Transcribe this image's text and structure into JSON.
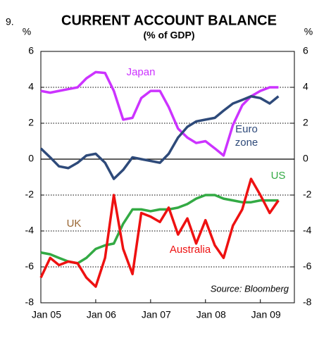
{
  "chart_data": {
    "type": "line",
    "figure_number": "9.",
    "title": "CURRENT ACCOUNT BALANCE",
    "subtitle": "(% of GDP)",
    "y_unit": "%",
    "y2_unit": "%",
    "source": "Source: Bloomberg",
    "x": [
      2005,
      2005.17,
      2005.33,
      2005.5,
      2005.67,
      2005.83,
      2006,
      2006.17,
      2006.33,
      2006.5,
      2006.67,
      2006.83,
      2007,
      2007.17,
      2007.33,
      2007.5,
      2007.67,
      2007.83,
      2008,
      2008.17,
      2008.33,
      2008.5,
      2008.67,
      2008.83,
      2009,
      2009.17,
      2009.33
    ],
    "xlim": [
      2005,
      2009.62
    ],
    "xticks": [
      {
        "value": 2005,
        "label": "Jan 05"
      },
      {
        "value": 2006,
        "label": "Jan 06"
      },
      {
        "value": 2007,
        "label": "Jan 07"
      },
      {
        "value": 2008,
        "label": "Jan 08"
      },
      {
        "value": 2009,
        "label": "Jan 09"
      }
    ],
    "ylim": [
      -8,
      6
    ],
    "yticks": [
      -8,
      -6,
      -4,
      -2,
      0,
      2,
      4,
      6
    ],
    "y2lim": [
      -8,
      6
    ],
    "y2ticks": [
      -8,
      -6,
      -4,
      -2,
      0,
      2,
      4,
      6
    ],
    "grid": true,
    "series": [
      {
        "name": "Japan",
        "color": "#cc33ff",
        "values": [
          3.8,
          3.7,
          3.8,
          3.9,
          4.0,
          4.5,
          4.85,
          4.8,
          3.8,
          2.2,
          2.3,
          3.4,
          3.8,
          3.8,
          2.9,
          1.7,
          1.2,
          0.9,
          1.0,
          0.6,
          0.2,
          1.9,
          3.0,
          3.5,
          3.8,
          4.0,
          4.0
        ]
      },
      {
        "name": "Euro zone",
        "color": "#2e4a7a",
        "values": [
          0.6,
          0.1,
          -0.4,
          -0.5,
          -0.2,
          0.2,
          0.3,
          -0.2,
          -1.1,
          -0.6,
          0.1,
          0.0,
          -0.1,
          -0.2,
          0.3,
          1.2,
          1.8,
          2.1,
          2.2,
          2.3,
          2.7,
          3.1,
          3.3,
          3.5,
          3.4,
          3.1,
          3.5
        ]
      },
      {
        "name": "US",
        "color": "#33aa44",
        "values": [
          -5.2,
          -5.3,
          -5.5,
          -5.7,
          -5.8,
          -5.5,
          -5.0,
          -4.8,
          -4.7,
          -3.6,
          -2.8,
          -2.8,
          -2.9,
          -2.8,
          -2.8,
          -2.7,
          -2.5,
          -2.2,
          -2.0,
          -2.0,
          -2.2,
          -2.3,
          -2.4,
          -2.4,
          -2.3,
          -2.3,
          -2.3
        ]
      },
      {
        "name": "Australia",
        "color": "#ee1111",
        "values": [
          -6.6,
          -5.5,
          -5.9,
          -5.7,
          -5.8,
          -6.6,
          -7.1,
          -5.5,
          -2.0,
          -5.0,
          -6.4,
          -3.0,
          -3.2,
          -3.5,
          -2.7,
          -4.2,
          -3.3,
          -4.7,
          -3.4,
          -4.8,
          -5.5,
          -3.7,
          -2.8,
          -1.1,
          -2.0,
          -3.0,
          -2.3
        ]
      }
    ],
    "annotations": [
      {
        "text": "UK",
        "color": "#996633"
      }
    ]
  }
}
